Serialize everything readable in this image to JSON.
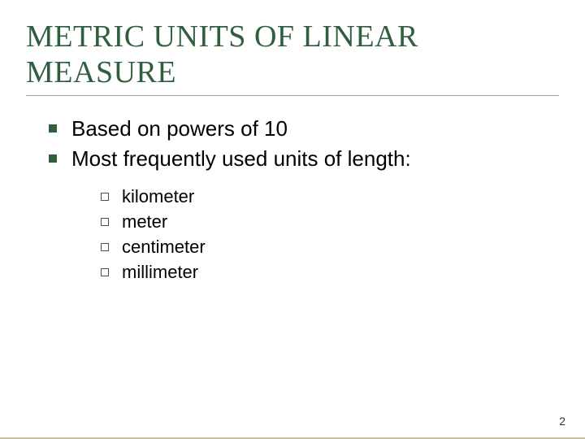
{
  "title_line1": "METRIC UNITS OF LINEAR",
  "title_line2": "MEASURE",
  "title_color": "#2f5f3f",
  "underline_color": "#9aa38a",
  "bottom_border_color": "#c9c19a",
  "background_color": "#ffffff",
  "bullets": {
    "level1": [
      "Based on powers of 10",
      "Most frequently used units of length:"
    ],
    "level2": [
      "kilometer",
      "meter",
      "centimeter",
      "millimeter"
    ]
  },
  "page_number": "2",
  "fonts": {
    "title_family": "Times New Roman",
    "title_size_pt": 38,
    "body_family": "Arial",
    "level1_size_pt": 26,
    "level2_size_pt": 22,
    "pagenum_size_pt": 14
  }
}
